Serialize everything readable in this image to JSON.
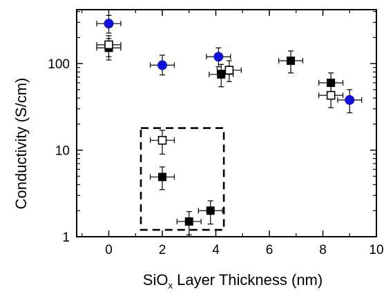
{
  "chart_data": {
    "type": "scatter",
    "title": "",
    "xlabel_main": "SiO",
    "xlabel_sub": "x",
    "xlabel_rest": " Layer Thickness (nm)",
    "ylabel": "Conductivity (S/cm)",
    "x_ticks": [
      0,
      2,
      4,
      6,
      8,
      10
    ],
    "x_tick_labels": [
      "0",
      "2",
      "4",
      "6",
      "8",
      "10"
    ],
    "xlim": [
      -1.2,
      10
    ],
    "y_ticks": [
      1,
      10,
      100
    ],
    "y_tick_labels": [
      "1",
      "10",
      "100"
    ],
    "ylim": [
      1,
      420
    ],
    "y_scale": "log",
    "grid": false,
    "legend": "none",
    "series": [
      {
        "marker": "circle",
        "color": "#1010e0",
        "points": [
          {
            "x": 0,
            "y": 290,
            "xerr": 0.45,
            "ylo": 225,
            "yhi": 360
          },
          {
            "x": 2,
            "y": 96,
            "xerr": 0.45,
            "ylo": 74,
            "yhi": 125
          },
          {
            "x": 4.1,
            "y": 120,
            "xerr": 0.45,
            "ylo": 92,
            "yhi": 152
          },
          {
            "x": 9,
            "y": 38,
            "xerr": 0.45,
            "ylo": 27,
            "yhi": 50
          }
        ]
      },
      {
        "marker": "square-filled",
        "color": "#000000",
        "points": [
          {
            "x": 0,
            "y": 152,
            "xerr": 0.45,
            "ylo": 110,
            "yhi": 195
          },
          {
            "x": 2,
            "y": 4.9,
            "xerr": 0.45,
            "ylo": 3.5,
            "yhi": 6.4
          },
          {
            "x": 3,
            "y": 1.5,
            "xerr": 0.45,
            "ylo": 1.05,
            "yhi": 1.95
          },
          {
            "x": 3.8,
            "y": 2.0,
            "xerr": 0.45,
            "ylo": 1.4,
            "yhi": 2.6
          },
          {
            "x": 4.2,
            "y": 75,
            "xerr": 0.45,
            "ylo": 54,
            "yhi": 98
          },
          {
            "x": 6.8,
            "y": 108,
            "xerr": 0.45,
            "ylo": 78,
            "yhi": 140
          },
          {
            "x": 8.3,
            "y": 60,
            "xerr": 0.45,
            "ylo": 44,
            "yhi": 78
          }
        ]
      },
      {
        "marker": "square-open",
        "color": "#000000",
        "points": [
          {
            "x": 0,
            "y": 165,
            "xerr": 0.45,
            "ylo": 120,
            "yhi": 210
          },
          {
            "x": 2,
            "y": 13,
            "xerr": 0.45,
            "ylo": 9,
            "yhi": 17
          },
          {
            "x": 4.5,
            "y": 84,
            "xerr": 0.45,
            "ylo": 62,
            "yhi": 108
          },
          {
            "x": 8.3,
            "y": 43,
            "xerr": 0.45,
            "ylo": 31,
            "yhi": 56
          }
        ]
      }
    ],
    "annotations": [
      {
        "type": "dashed-box",
        "x0": 1.2,
        "x1": 4.3,
        "y0": 1.2,
        "y1": 18
      }
    ]
  }
}
